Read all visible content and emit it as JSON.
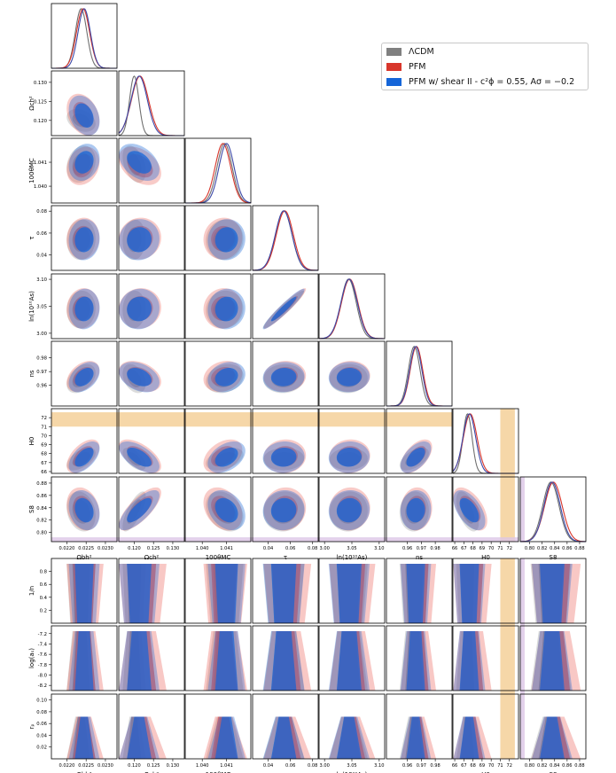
{
  "legend": {
    "entries": [
      {
        "label": "ΛCDM",
        "color": "#808080"
      },
      {
        "label": "PFM",
        "color": "#d8362b"
      },
      {
        "label": "PFM w/ shear II - c²ϕ = 0.55, Aσ = −0.2",
        "color": "#1565d8"
      }
    ]
  },
  "chart_data": {
    "type": "corner",
    "title": "",
    "series": [
      "ΛCDM",
      "PFM",
      "PFM w/ shear II - c²ϕ = 0.55, Aσ = −0.2"
    ],
    "colors": {
      "lcdm_line": "#707070",
      "lcdm_fill": "#8c8c8c",
      "pfm_line": "#d8362b",
      "pfm_fill": "#e8534a",
      "shear_line": "#3c49a8",
      "shear_fill": "#1565d8",
      "h0_band": "#f3c98b",
      "s8_band": "#dcc6e6"
    },
    "parameters": [
      {
        "key": "obh2",
        "label": "Ωbh²",
        "ticks": [
          "0.0220",
          "0.0225",
          "0.0230"
        ],
        "range": [
          0.0216,
          0.0233
        ],
        "mean": [
          0.02237,
          0.02242,
          0.02245
        ],
        "sigma": [
          0.00015,
          0.00017,
          0.00016
        ]
      },
      {
        "key": "och2",
        "label": "Ωch²",
        "ticks": [
          "0.120",
          "0.125",
          "0.130"
        ],
        "range": [
          0.116,
          0.133
        ],
        "mean": [
          0.12,
          0.1215,
          0.1213
        ],
        "sigma": [
          0.0012,
          0.0022,
          0.0021
        ]
      },
      {
        "key": "theta",
        "label": "100θMC",
        "ticks": [
          "1.040",
          "1.041"
        ],
        "range": [
          1.0393,
          1.042
        ],
        "mean": [
          1.04092,
          1.04085,
          1.041
        ],
        "sigma": [
          0.00031,
          0.00032,
          0.00031
        ]
      },
      {
        "key": "tau",
        "label": "τ",
        "ticks": [
          "0.04",
          "0.06",
          "0.08"
        ],
        "range": [
          0.026,
          0.085
        ],
        "mean": [
          0.054,
          0.055,
          0.054
        ],
        "sigma": [
          0.0074,
          0.0076,
          0.0075
        ]
      },
      {
        "key": "logA",
        "label": "ln(10¹⁰As)",
        "ticks": [
          "3.00",
          "3.05",
          "3.10"
        ],
        "range": [
          2.99,
          3.11
        ],
        "mean": [
          3.044,
          3.046,
          3.045
        ],
        "sigma": [
          0.014,
          0.015,
          0.015
        ]
      },
      {
        "key": "ns",
        "label": "ns",
        "ticks": [
          "0.96",
          "0.97",
          "0.98"
        ],
        "range": [
          0.945,
          0.992
        ],
        "mean": [
          0.9649,
          0.9665,
          0.966
        ],
        "sigma": [
          0.0042,
          0.0045,
          0.0044
        ]
      },
      {
        "key": "H0",
        "label": "H0",
        "ticks": [
          "66",
          "67",
          "68",
          "69",
          "70",
          "71",
          "72"
        ],
        "range": [
          65.8,
          73.0
        ],
        "mean": [
          67.4,
          67.7,
          67.6
        ],
        "sigma": [
          0.5,
          0.75,
          0.7
        ]
      },
      {
        "key": "S8",
        "label": "S8",
        "ticks": [
          "0.80",
          "0.82",
          "0.84",
          "0.86",
          "0.88"
        ],
        "range": [
          0.785,
          0.89
        ],
        "mean": [
          0.834,
          0.838,
          0.836
        ],
        "sigma": [
          0.013,
          0.014,
          0.013
        ]
      }
    ],
    "extra_rows": [
      {
        "key": "inv_n",
        "label": "1/n",
        "ticks": [
          "0.2",
          "0.4",
          "0.6",
          "0.8"
        ],
        "range": [
          0.0,
          1.0
        ]
      },
      {
        "key": "log_as",
        "label": "log(aₛ)",
        "ticks": [
          "-8.2",
          "-8.0",
          "-7.8",
          "-7.6",
          "-7.4",
          "-7.2"
        ],
        "range": [
          -8.3,
          -7.05
        ]
      },
      {
        "key": "rp",
        "label": "rₚ",
        "ticks": [
          "0.02",
          "0.04",
          "0.06",
          "0.08",
          "0.10"
        ],
        "range": [
          0.0,
          0.11
        ]
      }
    ],
    "axis_label_rows": {
      "upper": [
        "Ωbh²",
        "Ωch²",
        "100θMC",
        "τ",
        "ln(10¹⁰As)",
        "ns",
        "H0",
        "S8"
      ],
      "lower": [
        "Ωbh²",
        "Ωch²",
        "100θMC",
        "τ",
        "ln(10¹⁰As)",
        "ns",
        "H0",
        "S8"
      ]
    },
    "bands": {
      "H0": {
        "min": 71.0,
        "max": 72.6
      },
      "S8": {
        "min": 0.776,
        "max": 0.792
      }
    },
    "xlabel": "",
    "ylabel": ""
  }
}
